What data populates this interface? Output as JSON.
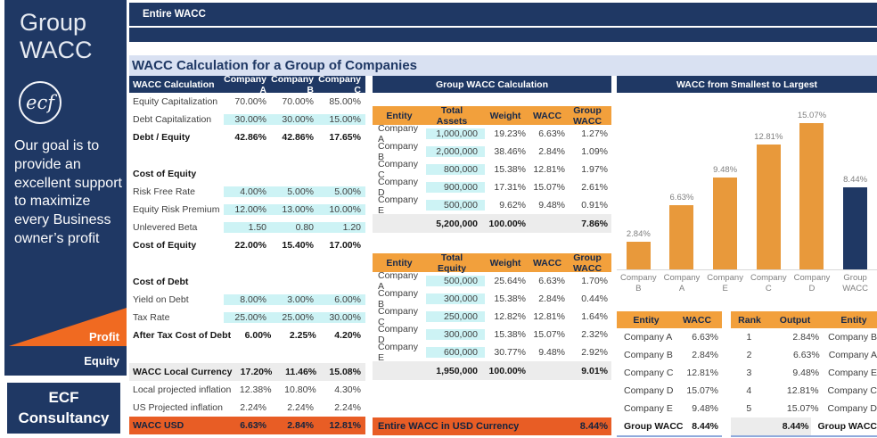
{
  "colors": {
    "navy": "#1F3864",
    "header_orange": "#F2A03C",
    "alert_orange": "#E85D25",
    "bar_orange": "#E8993B",
    "input_cyan": "#CDF3F5",
    "total_gray": "#ECECEC",
    "title_band_blue": "#D9E1F2"
  },
  "sidebar": {
    "title": "Group WACC",
    "logo_text": "ecf",
    "mission": "Our goal is to provide an excellent support to maximize every Business owner’s profit",
    "profit_label": "Profit",
    "equity_label": "Equity",
    "brand": "ECF Consultancy"
  },
  "topbar": {
    "tab": "Entire WACC"
  },
  "main_title": "WACC Calculation for a Group of Companies",
  "wacc_table": {
    "header": [
      "WACC Calculation",
      "Company A",
      "Company B",
      "Company C"
    ],
    "rows": [
      {
        "label": "Equity Capitalization",
        "values": [
          "70.00%",
          "70.00%",
          "85.00%"
        ],
        "style": "plain"
      },
      {
        "label": "Debt Capitalization",
        "values": [
          "30.00%",
          "30.00%",
          "15.00%"
        ],
        "style": "input"
      },
      {
        "label": "Debt / Equity",
        "values": [
          "42.86%",
          "42.86%",
          "17.65%"
        ],
        "style": "bold"
      },
      {
        "label": "",
        "style": "blank"
      },
      {
        "label": "Cost of Equity",
        "style": "section"
      },
      {
        "label": "Risk Free Rate",
        "values": [
          "4.00%",
          "5.00%",
          "5.00%"
        ],
        "style": "input"
      },
      {
        "label": "Equity Risk Premium",
        "values": [
          "12.00%",
          "13.00%",
          "10.00%"
        ],
        "style": "input"
      },
      {
        "label": "Unlevered Beta",
        "values": [
          "1.50",
          "0.80",
          "1.20"
        ],
        "style": "input"
      },
      {
        "label": "Cost of Equity",
        "values": [
          "22.00%",
          "15.40%",
          "17.00%"
        ],
        "style": "bold"
      },
      {
        "label": "",
        "style": "blank"
      },
      {
        "label": "Cost of Debt",
        "style": "section"
      },
      {
        "label": "Yield on Debt",
        "values": [
          "8.00%",
          "3.00%",
          "6.00%"
        ],
        "style": "input"
      },
      {
        "label": "Tax Rate",
        "values": [
          "25.00%",
          "25.00%",
          "30.00%"
        ],
        "style": "input"
      },
      {
        "label": "After Tax Cost of Debt",
        "values": [
          "6.00%",
          "2.25%",
          "4.20%"
        ],
        "style": "bold"
      },
      {
        "label": "",
        "style": "blank"
      },
      {
        "label": "WACC Local Currency",
        "values": [
          "17.20%",
          "11.46%",
          "15.08%"
        ],
        "style": "gray"
      },
      {
        "label": "Local projected inflation",
        "values": [
          "12.38%",
          "10.80%",
          "4.30%"
        ],
        "style": "plain"
      },
      {
        "label": "US Projected inflation",
        "values": [
          "2.24%",
          "2.24%",
          "2.24%"
        ],
        "style": "plain"
      },
      {
        "label": "WACC USD",
        "values": [
          "6.63%",
          "2.84%",
          "12.81%"
        ],
        "style": "orange"
      }
    ]
  },
  "group_section": {
    "title": "Group WACC Calculation",
    "assets_table": {
      "header": [
        "Entity",
        "Total Assets",
        "Weight",
        "WACC",
        "Group WACC"
      ],
      "rows": [
        [
          "Company A",
          "1,000,000",
          "19.23%",
          "6.63%",
          "1.27%"
        ],
        [
          "Company B",
          "2,000,000",
          "38.46%",
          "2.84%",
          "1.09%"
        ],
        [
          "Company C",
          "800,000",
          "15.38%",
          "12.81%",
          "1.97%"
        ],
        [
          "Company D",
          "900,000",
          "17.31%",
          "15.07%",
          "2.61%"
        ],
        [
          "Company E",
          "500,000",
          "9.62%",
          "9.48%",
          "0.91%"
        ]
      ],
      "total": [
        "5,200,000",
        "100.00%",
        "7.86%"
      ]
    },
    "equity_table": {
      "header": [
        "Entity",
        "Total Equity",
        "Weight",
        "WACC",
        "Group WACC"
      ],
      "rows": [
        [
          "Company A",
          "500,000",
          "25.64%",
          "6.63%",
          "1.70%"
        ],
        [
          "Company B",
          "300,000",
          "15.38%",
          "2.84%",
          "0.44%"
        ],
        [
          "Company C",
          "250,000",
          "12.82%",
          "12.81%",
          "1.64%"
        ],
        [
          "Company D",
          "300,000",
          "15.38%",
          "15.07%",
          "2.32%"
        ],
        [
          "Company E",
          "600,000",
          "30.77%",
          "9.48%",
          "2.92%"
        ]
      ],
      "total": [
        "1,950,000",
        "100.00%",
        "9.01%"
      ]
    },
    "entire_wacc": {
      "label": "Entire WACC in USD Currency",
      "value": "8.44%"
    }
  },
  "chart_data": {
    "type": "bar",
    "title": "WACC from Smallest to Largest",
    "categories": [
      "Company B",
      "Company A",
      "Company E",
      "Company C",
      "Company D",
      "Group WACC"
    ],
    "values": [
      2.84,
      6.63,
      9.48,
      12.81,
      15.07,
      8.44
    ],
    "labels": [
      "2.84%",
      "6.63%",
      "9.48%",
      "12.81%",
      "15.07%",
      "8.44%"
    ],
    "bar_colors": [
      "#E8993B",
      "#E8993B",
      "#E8993B",
      "#E8993B",
      "#E8993B",
      "#1F3864"
    ],
    "xlabel": "",
    "ylabel": "",
    "ylim": [
      0,
      16.5
    ],
    "grid": false,
    "legend": false,
    "data_labels": true
  },
  "rank_section": {
    "entity_table": {
      "header": [
        "Entity",
        "WACC"
      ],
      "rows": [
        [
          "Company A",
          "6.63%"
        ],
        [
          "Company B",
          "2.84%"
        ],
        [
          "Company C",
          "12.81%"
        ],
        [
          "Company D",
          "15.07%"
        ],
        [
          "Company E",
          "9.48%"
        ],
        [
          "Group WACC",
          "8.44%"
        ]
      ]
    },
    "rank_table": {
      "header": [
        "Rank",
        "Output",
        "Entity"
      ],
      "rows": [
        [
          "1",
          "2.84%",
          "Company B"
        ],
        [
          "2",
          "6.63%",
          "Company A"
        ],
        [
          "3",
          "9.48%",
          "Company E"
        ],
        [
          "4",
          "12.81%",
          "Company C"
        ],
        [
          "5",
          "15.07%",
          "Company D"
        ],
        [
          "",
          "8.44%",
          "Group WACC"
        ]
      ]
    }
  }
}
